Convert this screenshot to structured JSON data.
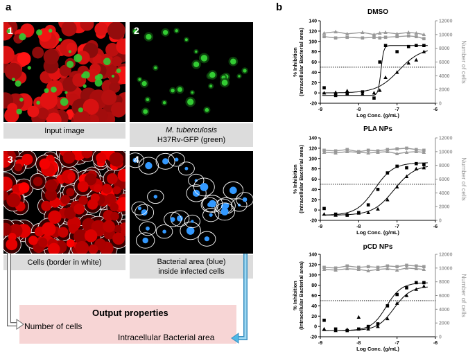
{
  "panel_a": {
    "letter": "a",
    "tiles": [
      {
        "num": "1",
        "caption_lines": [
          "Input image"
        ]
      },
      {
        "num": "2",
        "caption_lines": [
          "M. tuberculosis",
          "H37Rv-GFP (green)"
        ]
      },
      {
        "num": "3",
        "caption_lines": [
          "Cells (border in white)"
        ]
      },
      {
        "num": "4",
        "caption_lines": [
          "Bacterial area (blue)",
          "inside infected cells"
        ]
      }
    ],
    "output": {
      "title": "Output properties",
      "item1": "Number of cells",
      "item2": "Intracellular Bacterial area"
    },
    "colors": {
      "cells": "#ff1a1a",
      "bacteria_green": "#33cc33",
      "bacteria_blue": "#3399ff",
      "border": "#ffffff",
      "arrow_blue": "#4db8e6"
    }
  },
  "panel_b": {
    "letter": "b",
    "left_axis_label_1": "% Inhibition",
    "left_axis_label_2": "(Intracellular Bacterial area)",
    "right_axis_label": "Number of cells",
    "x_axis_label": "Log Conc. (g/mL)"
  },
  "chart_data": [
    {
      "type": "scatter",
      "title": "DMSO",
      "xlabel": "Log Conc. (g/mL)",
      "ylabel": "% Inhibition (Intracellular Bacterial area)",
      "y2label": "Number of cells",
      "xlim": [
        -9,
        -6
      ],
      "ylim": [
        -20,
        140
      ],
      "y2lim": [
        0,
        12000
      ],
      "xticks": [
        "-9",
        "-8",
        "-7",
        "-6"
      ],
      "yticks": [
        "-20",
        "0",
        "20",
        "40",
        "60",
        "80",
        "100",
        "120",
        "140"
      ],
      "y2ticks": [
        "0",
        "2000",
        "4000",
        "6000",
        "8000",
        "10000",
        "12000"
      ],
      "threshold": 50,
      "series": [
        {
          "marker": "square",
          "color": "#000000",
          "x": [
            -8.9,
            -8.6,
            -8.3,
            -7.9,
            -7.6,
            -7.45,
            -7.3,
            -7.0,
            -6.7,
            -6.5,
            -6.3
          ],
          "y": [
            10,
            -5,
            -2,
            2,
            -10,
            60,
            92,
            80,
            90,
            92,
            92
          ]
        },
        {
          "marker": "triangle",
          "color": "#000000",
          "x": [
            -8.9,
            -8.6,
            -8.3,
            -7.9,
            -7.6,
            -7.45,
            -7.3,
            -7.0,
            -6.7,
            -6.5,
            -6.3
          ],
          "y": [
            0,
            1,
            4,
            -2,
            0,
            5,
            30,
            40,
            58,
            64,
            80
          ]
        },
        {
          "marker": "square",
          "color": "#999999",
          "axis": "right",
          "x": [
            -8.9,
            -8.6,
            -8.3,
            -7.9,
            -7.6,
            -7.45,
            -7.3,
            -7.0,
            -6.7,
            -6.5,
            -6.3
          ],
          "y": [
            9700,
            9500,
            9600,
            9500,
            9600,
            9500,
            9600,
            9700,
            9800,
            9700,
            9400
          ]
        },
        {
          "marker": "triangle",
          "color": "#999999",
          "axis": "right",
          "x": [
            -8.9,
            -8.6,
            -8.3,
            -7.9,
            -7.6,
            -7.45,
            -7.3,
            -7.0,
            -6.7,
            -6.5,
            -6.3
          ],
          "y": [
            10200,
            10400,
            10100,
            10300,
            10000,
            10200,
            10300,
            10100,
            10300,
            10200,
            10000
          ]
        }
      ],
      "fits": [
        {
          "top": 92,
          "bottom": -5,
          "ec50": -7.42,
          "hill": 12
        },
        {
          "top": 88,
          "bottom": 0,
          "ec50": -6.95,
          "hill": 1.5
        }
      ]
    },
    {
      "type": "scatter",
      "title": "PLA NPs",
      "xlabel": "Log Conc. (g/mL)",
      "ylabel": "% Inhibition (Intracellular Bacterial area)",
      "y2label": "Number of cells",
      "xlim": [
        -9,
        -6
      ],
      "ylim": [
        -20,
        140
      ],
      "y2lim": [
        0,
        12000
      ],
      "xticks": [
        "-9",
        "-8",
        "-7",
        "-6"
      ],
      "yticks": [
        "-20",
        "0",
        "20",
        "40",
        "60",
        "80",
        "100",
        "120",
        "140"
      ],
      "y2ticks": [
        "0",
        "2000",
        "4000",
        "6000",
        "8000",
        "10000",
        "12000"
      ],
      "threshold": 50,
      "series": [
        {
          "marker": "square",
          "color": "#000000",
          "x": [
            -8.9,
            -8.6,
            -8.3,
            -8.0,
            -7.75,
            -7.5,
            -7.25,
            -7.0,
            -6.75,
            -6.5,
            -6.3
          ],
          "y": [
            3,
            -8,
            -10,
            -5,
            10,
            40,
            72,
            85,
            82,
            90,
            88
          ]
        },
        {
          "marker": "triangle",
          "color": "#000000",
          "x": [
            -8.9,
            -8.6,
            -8.3,
            -8.0,
            -7.75,
            -7.5,
            -7.25,
            -7.0,
            -6.75,
            -6.5,
            -6.3
          ],
          "y": [
            -8,
            -10,
            -8,
            -6,
            -5,
            2,
            20,
            45,
            65,
            80,
            82
          ]
        },
        {
          "marker": "square",
          "color": "#999999",
          "axis": "right",
          "x": [
            -8.9,
            -8.6,
            -8.3,
            -8.0,
            -7.75,
            -7.5,
            -7.25,
            -7.0,
            -6.75,
            -6.5,
            -6.3
          ],
          "y": [
            10200,
            10100,
            10300,
            10000,
            10200,
            10100,
            10300,
            10400,
            10500,
            10300,
            10200
          ]
        },
        {
          "marker": "triangle",
          "color": "#999999",
          "axis": "right",
          "x": [
            -8.9,
            -8.6,
            -8.3,
            -8.0,
            -7.75,
            -7.5,
            -7.25,
            -7.0,
            -6.75,
            -6.5,
            -6.3
          ],
          "y": [
            9900,
            9800,
            10000,
            9900,
            9800,
            9900,
            10000,
            9700,
            9900,
            10000,
            9900
          ]
        }
      ],
      "fits": [
        {
          "top": 92,
          "bottom": -10,
          "ec50": -7.58,
          "hill": 1.8
        },
        {
          "top": 88,
          "bottom": -10,
          "ec50": -7.08,
          "hill": 1.6
        }
      ]
    },
    {
      "type": "scatter",
      "title": "pCD NPs",
      "xlabel": "Log Conc. (g/mL)",
      "ylabel": "% Inhibition (Intracellular Bacterial area)",
      "y2label": "Number of cells",
      "xlim": [
        -9,
        -6
      ],
      "ylim": [
        -20,
        140
      ],
      "y2lim": [
        0,
        12000
      ],
      "xticks": [
        "-9",
        "-8",
        "-7",
        "-6"
      ],
      "yticks": [
        "-20",
        "0",
        "20",
        "40",
        "60",
        "80",
        "100",
        "120",
        "140"
      ],
      "y2ticks": [
        "0",
        "2000",
        "4000",
        "6000",
        "8000",
        "10000",
        "12000"
      ],
      "threshold": 50,
      "series": [
        {
          "marker": "square",
          "color": "#000000",
          "x": [
            -8.9,
            -8.6,
            -8.3,
            -8.0,
            -7.75,
            -7.5,
            -7.25,
            -7.0,
            -6.75,
            -6.5,
            -6.3
          ],
          "y": [
            12,
            -5,
            -8,
            -5,
            0,
            5,
            40,
            62,
            75,
            85,
            85
          ]
        },
        {
          "marker": "triangle",
          "color": "#000000",
          "x": [
            -8.9,
            -8.6,
            -8.3,
            -8.0,
            -7.75,
            -7.5,
            -7.25,
            -7.0,
            -6.75,
            -6.5,
            -6.3
          ],
          "y": [
            -5,
            -8,
            -6,
            18,
            -5,
            0,
            15,
            45,
            60,
            72,
            78
          ]
        },
        {
          "marker": "square",
          "color": "#999999",
          "axis": "right",
          "x": [
            -8.9,
            -8.6,
            -8.3,
            -8.0,
            -7.75,
            -7.5,
            -7.25,
            -7.0,
            -6.75,
            -6.5,
            -6.3
          ],
          "y": [
            10100,
            10000,
            10300,
            10100,
            10200,
            10100,
            10300,
            10200,
            10400,
            10300,
            10200
          ]
        },
        {
          "marker": "triangle",
          "color": "#999999",
          "axis": "right",
          "x": [
            -8.9,
            -8.6,
            -8.3,
            -8.0,
            -7.75,
            -7.5,
            -7.25,
            -7.0,
            -6.75,
            -6.5,
            -6.3
          ],
          "y": [
            9800,
            9700,
            9900,
            9800,
            9600,
            9800,
            9900,
            9700,
            10000,
            9900,
            9800
          ]
        }
      ],
      "fits": [
        {
          "top": 85,
          "bottom": -8,
          "ec50": -7.28,
          "hill": 2.2
        },
        {
          "top": 78,
          "bottom": -8,
          "ec50": -7.08,
          "hill": 2.0
        }
      ]
    }
  ]
}
